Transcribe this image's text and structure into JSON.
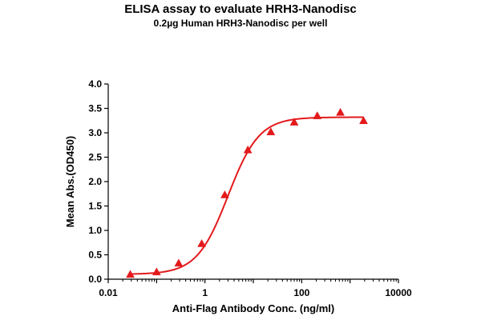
{
  "chart_data": {
    "type": "scatter",
    "title": "ELISA assay to evaluate HRH3-Nanodisc",
    "subtitle": "0.2µg Human HRH3-Nanodisc per well",
    "xlabel": "Anti-Flag Antibody Conc. (ng/ml)",
    "ylabel": "Mean Abs.(OD450)",
    "x_scale": "log",
    "xlim": [
      0.01,
      10000
    ],
    "ylim": [
      0.0,
      4.0
    ],
    "x_ticks": [
      {
        "value": 0.01,
        "label": "0.01"
      },
      {
        "value": 1,
        "label": "1"
      },
      {
        "value": 100,
        "label": "100"
      },
      {
        "value": 10000,
        "label": "10000"
      }
    ],
    "y_ticks": [
      {
        "value": 0.0,
        "label": "0.0"
      },
      {
        "value": 0.5,
        "label": "0.5"
      },
      {
        "value": 1.0,
        "label": "1.0"
      },
      {
        "value": 1.5,
        "label": "1.5"
      },
      {
        "value": 2.0,
        "label": "2.0"
      },
      {
        "value": 2.5,
        "label": "2.5"
      },
      {
        "value": 3.0,
        "label": "3.0"
      },
      {
        "value": 3.5,
        "label": "3.5"
      },
      {
        "value": 4.0,
        "label": "4.0"
      }
    ],
    "color": "#e31a1c",
    "marker": "triangle",
    "grid": false,
    "series": [
      {
        "x": [
          0.0286,
          0.1,
          0.286,
          0.857,
          2.57,
          7.7,
          23,
          70,
          210,
          630,
          1900
        ],
        "y": [
          0.1,
          0.15,
          0.33,
          0.73,
          1.73,
          2.65,
          3.02,
          3.22,
          3.35,
          3.42,
          3.25
        ]
      }
    ],
    "fit_curve": {
      "model": "4PL",
      "bottom": 0.1,
      "top": 3.32,
      "ec50": 3.0,
      "hill": 1.35
    }
  }
}
